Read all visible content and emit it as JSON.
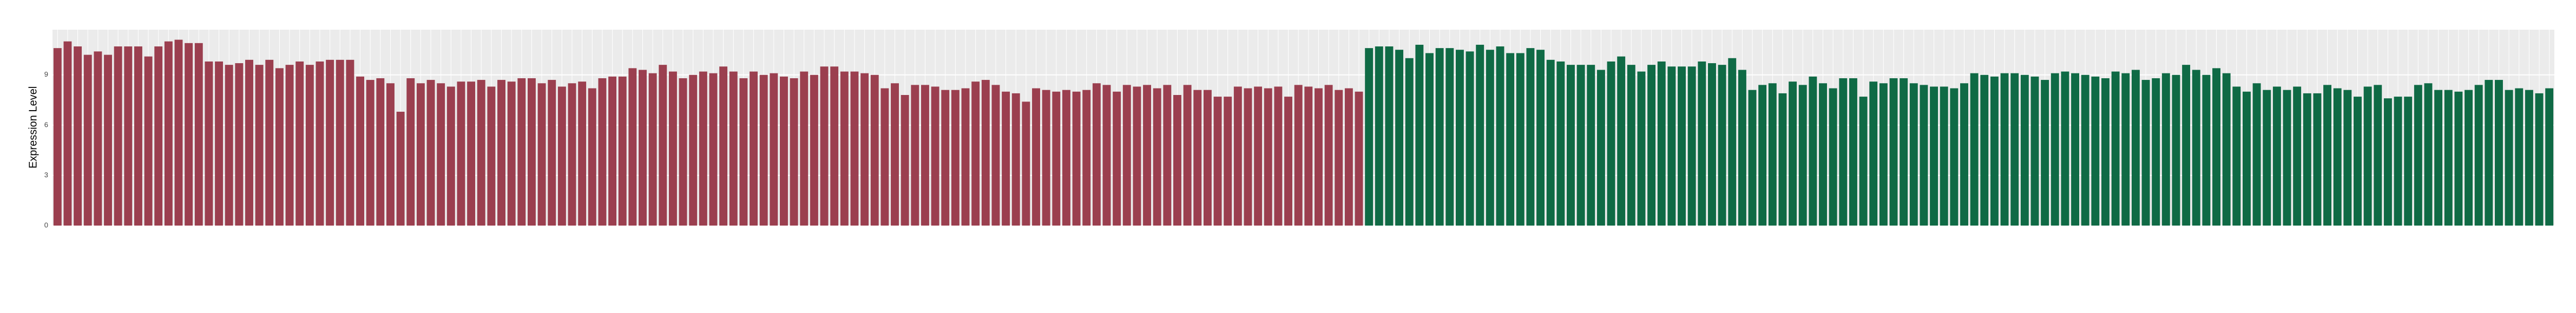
{
  "chart_data": {
    "type": "bar",
    "ylabel": "Expression Level",
    "ylim": [
      0,
      11.7
    ],
    "yticks": [
      0,
      3,
      6,
      9
    ],
    "grid": true,
    "categories": [
      null,
      null,
      null,
      null,
      null,
      null,
      null,
      null,
      null,
      null,
      null,
      null,
      null,
      null,
      null,
      null,
      null,
      null,
      null,
      null,
      null,
      null,
      null,
      null,
      null,
      null,
      null,
      null,
      null,
      null,
      null,
      null,
      null,
      null,
      null,
      null,
      null,
      null,
      null,
      null,
      null,
      null,
      null,
      null,
      null,
      null,
      null,
      null,
      null,
      null,
      null,
      null,
      null,
      null,
      null,
      null,
      null,
      null,
      null,
      null,
      null,
      null,
      null,
      null,
      null,
      null,
      null,
      null,
      null,
      null,
      null,
      null,
      null,
      null,
      null,
      null,
      null,
      null,
      null,
      null,
      null,
      null,
      null,
      null,
      null,
      null,
      null,
      null,
      null,
      null,
      null,
      null,
      null,
      null,
      null,
      null,
      null,
      null,
      null,
      null,
      null,
      null,
      null,
      null,
      null,
      null,
      null,
      null,
      null,
      null,
      null,
      null,
      null,
      null,
      null,
      null,
      null,
      null,
      null,
      null,
      null,
      null,
      null,
      null,
      null,
      null,
      null,
      null,
      null,
      null,
      null,
      null,
      null,
      null,
      null,
      null,
      null,
      null,
      null,
      null,
      null,
      null,
      null,
      null,
      null,
      null,
      null,
      null,
      null,
      null,
      null,
      null,
      null,
      null,
      null,
      null,
      null,
      null,
      null,
      null,
      null,
      null,
      null,
      null,
      null,
      null,
      null,
      null,
      null,
      null,
      null,
      null,
      null,
      null,
      null,
      null,
      null,
      null,
      null,
      null,
      null,
      null,
      null,
      null,
      null,
      null,
      null,
      null,
      null,
      null,
      null,
      null,
      null,
      null,
      null,
      null,
      null,
      null,
      null,
      null,
      null,
      null,
      null,
      null,
      null,
      null,
      null,
      null,
      null,
      null,
      null,
      null,
      null,
      null,
      null,
      null,
      null,
      null,
      null,
      null,
      null,
      null,
      null,
      null,
      null,
      null,
      null,
      null,
      null,
      null,
      null,
      null,
      null,
      null,
      null,
      null,
      null,
      null,
      null,
      null,
      null,
      null,
      null,
      null,
      null,
      null,
      null,
      null
    ],
    "values": [
      10.6,
      11,
      10.7,
      10.2,
      10.4,
      10.2,
      10.7,
      10.7,
      10.7,
      10.1,
      10.7,
      11,
      11.1,
      10.9,
      10.9,
      9.8,
      9.8,
      9.6,
      9.7,
      9.9,
      9.6,
      9.9,
      9.4,
      9.6,
      9.8,
      9.6,
      9.8,
      9.9,
      9.9,
      9.9,
      8.9,
      8.7,
      8.8,
      8.5,
      6.8,
      8.8,
      8.5,
      8.7,
      8.5,
      8.3,
      8.6,
      8.6,
      8.7,
      8.3,
      8.7,
      8.6,
      8.8,
      8.8,
      8.5,
      8.7,
      8.3,
      8.5,
      8.6,
      8.2,
      8.8,
      8.9,
      8.9,
      9.4,
      9.3,
      9.1,
      9.6,
      9.2,
      8.8,
      9,
      9.2,
      9.1,
      9.5,
      9.2,
      8.8,
      9.2,
      9,
      9.1,
      8.9,
      8.8,
      9.2,
      9,
      9.5,
      9.5,
      9.2,
      9.2,
      9.1,
      9,
      8.2,
      8.5,
      7.8,
      8.4,
      8.4,
      8.3,
      8.1,
      8.1,
      8.2,
      8.6,
      8.7,
      8.4,
      8,
      7.9,
      7.4,
      8.2,
      8.1,
      8,
      8.1,
      8,
      8.1,
      8.5,
      8.4,
      8,
      8.4,
      8.3,
      8.4,
      8.2,
      8.4,
      7.8,
      8.4,
      8.1,
      8.1,
      7.7,
      7.7,
      8.3,
      8.2,
      8.3,
      8.2,
      8.3,
      7.7,
      8.4,
      8.3,
      8.2,
      8.4,
      8.1,
      8.2,
      8,
      10.6,
      10.7,
      10.7,
      10.5,
      10,
      10.8,
      10.3,
      10.6,
      10.6,
      10.5,
      10.4,
      10.8,
      10.5,
      10.7,
      10.3,
      10.3,
      10.6,
      10.5,
      9.9,
      9.8,
      9.6,
      9.6,
      9.6,
      9.3,
      9.8,
      10.1,
      9.6,
      9.2,
      9.6,
      9.8,
      9.5,
      9.5,
      9.5,
      9.8,
      9.7,
      9.6,
      10,
      9.3,
      8.1,
      8.4,
      8.5,
      7.9,
      8.6,
      8.4,
      8.9,
      8.5,
      8.2,
      8.8,
      8.8,
      7.7,
      8.6,
      8.5,
      8.8,
      8.8,
      8.5,
      8.4,
      8.3,
      8.3,
      8.2,
      8.5,
      9.1,
      9,
      8.9,
      9.1,
      9.1,
      9,
      8.9,
      8.7,
      9.1,
      9.2,
      9.1,
      9,
      8.9,
      8.8,
      9.2,
      9.1,
      9.3,
      8.7,
      8.8,
      9.1,
      9,
      9.6,
      9.3,
      9,
      9.4,
      9.1,
      8.3,
      8,
      8.5,
      8.1,
      8.3,
      8.1,
      8.3,
      7.9,
      7.9,
      8.4,
      8.2,
      8.1,
      7.7,
      8.3,
      8.4,
      7.6,
      7.7,
      7.7,
      8.4,
      8.5,
      8.1,
      8.1,
      8,
      8.1,
      8.4,
      8.7,
      8.7,
      8.1,
      8.2,
      8.1,
      7.9,
      8.2
    ],
    "colors": [
      "#9b3f4f",
      "#9b3f4f",
      "#9b3f4f",
      "#9b3f4f",
      "#9b3f4f",
      "#9b3f4f",
      "#9b3f4f",
      "#9b3f4f",
      "#9b3f4f",
      "#9b3f4f",
      "#9b3f4f",
      "#9b3f4f",
      "#9b3f4f",
      "#9b3f4f",
      "#9b3f4f",
      "#9b3f4f",
      "#9b3f4f",
      "#9b3f4f",
      "#9b3f4f",
      "#9b3f4f",
      "#9b3f4f",
      "#9b3f4f",
      "#9b3f4f",
      "#9b3f4f",
      "#9b3f4f",
      "#9b3f4f",
      "#9b3f4f",
      "#9b3f4f",
      "#9b3f4f",
      "#9b3f4f",
      "#9b3f4f",
      "#9b3f4f",
      "#9b3f4f",
      "#9b3f4f",
      "#9b3f4f",
      "#9b3f4f",
      "#9b3f4f",
      "#9b3f4f",
      "#9b3f4f",
      "#9b3f4f",
      "#9b3f4f",
      "#9b3f4f",
      "#9b3f4f",
      "#9b3f4f",
      "#9b3f4f",
      "#9b3f4f",
      "#9b3f4f",
      "#9b3f4f",
      "#9b3f4f",
      "#9b3f4f",
      "#9b3f4f",
      "#9b3f4f",
      "#9b3f4f",
      "#9b3f4f",
      "#9b3f4f",
      "#9b3f4f",
      "#9b3f4f",
      "#9b3f4f",
      "#9b3f4f",
      "#9b3f4f",
      "#9b3f4f",
      "#9b3f4f",
      "#9b3f4f",
      "#9b3f4f",
      "#9b3f4f",
      "#9b3f4f",
      "#9b3f4f",
      "#9b3f4f",
      "#9b3f4f",
      "#9b3f4f",
      "#9b3f4f",
      "#9b3f4f",
      "#9b3f4f",
      "#9b3f4f",
      "#9b3f4f",
      "#9b3f4f",
      "#9b3f4f",
      "#9b3f4f",
      "#9b3f4f",
      "#9b3f4f",
      "#9b3f4f",
      "#9b3f4f",
      "#9b3f4f",
      "#9b3f4f",
      "#9b3f4f",
      "#9b3f4f",
      "#9b3f4f",
      "#9b3f4f",
      "#9b3f4f",
      "#9b3f4f",
      "#9b3f4f",
      "#9b3f4f",
      "#9b3f4f",
      "#9b3f4f",
      "#9b3f4f",
      "#9b3f4f",
      "#9b3f4f",
      "#9b3f4f",
      "#9b3f4f",
      "#9b3f4f",
      "#9b3f4f",
      "#9b3f4f",
      "#9b3f4f",
      "#9b3f4f",
      "#9b3f4f",
      "#9b3f4f",
      "#9b3f4f",
      "#9b3f4f",
      "#9b3f4f",
      "#9b3f4f",
      "#9b3f4f",
      "#9b3f4f",
      "#9b3f4f",
      "#9b3f4f",
      "#9b3f4f",
      "#9b3f4f",
      "#9b3f4f",
      "#9b3f4f",
      "#9b3f4f",
      "#9b3f4f",
      "#9b3f4f",
      "#9b3f4f",
      "#9b3f4f",
      "#9b3f4f",
      "#9b3f4f",
      "#9b3f4f",
      "#9b3f4f",
      "#9b3f4f",
      "#9b3f4f",
      "#9b3f4f",
      "#0f6a45",
      "#0f6a45",
      "#0f6a45",
      "#0f6a45",
      "#0f6a45",
      "#0f6a45",
      "#0f6a45",
      "#0f6a45",
      "#0f6a45",
      "#0f6a45",
      "#0f6a45",
      "#0f6a45",
      "#0f6a45",
      "#0f6a45",
      "#0f6a45",
      "#0f6a45",
      "#0f6a45",
      "#0f6a45",
      "#0f6a45",
      "#0f6a45",
      "#0f6a45",
      "#0f6a45",
      "#0f6a45",
      "#0f6a45",
      "#0f6a45",
      "#0f6a45",
      "#0f6a45",
      "#0f6a45",
      "#0f6a45",
      "#0f6a45",
      "#0f6a45",
      "#0f6a45",
      "#0f6a45",
      "#0f6a45",
      "#0f6a45",
      "#0f6a45",
      "#0f6a45",
      "#0f6a45",
      "#0f6a45",
      "#0f6a45",
      "#0f6a45",
      "#0f6a45",
      "#0f6a45",
      "#0f6a45",
      "#0f6a45",
      "#0f6a45",
      "#0f6a45",
      "#0f6a45",
      "#0f6a45",
      "#0f6a45",
      "#0f6a45",
      "#0f6a45",
      "#0f6a45",
      "#0f6a45",
      "#0f6a45",
      "#0f6a45",
      "#0f6a45",
      "#0f6a45",
      "#0f6a45",
      "#0f6a45",
      "#0f6a45",
      "#0f6a45",
      "#0f6a45",
      "#0f6a45",
      "#0f6a45",
      "#0f6a45",
      "#0f6a45",
      "#0f6a45",
      "#0f6a45",
      "#0f6a45",
      "#0f6a45",
      "#0f6a45",
      "#0f6a45",
      "#0f6a45",
      "#0f6a45",
      "#0f6a45",
      "#0f6a45",
      "#0f6a45",
      "#0f6a45",
      "#0f6a45",
      "#0f6a45",
      "#0f6a45",
      "#0f6a45",
      "#0f6a45",
      "#0f6a45",
      "#0f6a45",
      "#0f6a45",
      "#0f6a45",
      "#0f6a45",
      "#0f6a45",
      "#0f6a45",
      "#0f6a45",
      "#0f6a45",
      "#0f6a45",
      "#0f6a45",
      "#0f6a45",
      "#0f6a45",
      "#0f6a45",
      "#0f6a45",
      "#0f6a45",
      "#0f6a45",
      "#0f6a45",
      "#0f6a45",
      "#0f6a45",
      "#0f6a45",
      "#0f6a45",
      "#0f6a45",
      "#0f6a45",
      "#0f6a45",
      "#0f6a45",
      "#0f6a45",
      "#0f6a45",
      "#0f6a45",
      "#0f6a45",
      "#0f6a45",
      "#0f6a45",
      "#0f6a45",
      "#0f6a45"
    ]
  }
}
